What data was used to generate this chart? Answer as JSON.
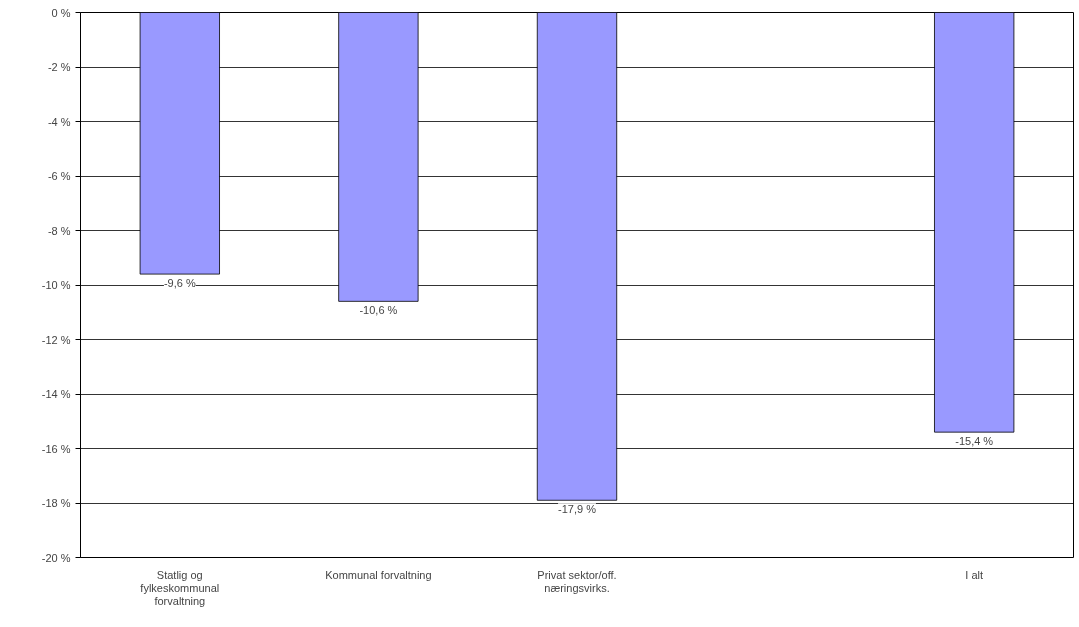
{
  "chart_data": {
    "type": "bar",
    "categories": [
      "Statlig og fylkeskommunal forvaltning",
      "Kommunal forvaltning",
      "Privat sektor/off. næringsvirks.",
      null,
      "I alt"
    ],
    "values": [
      -9.6,
      -10.6,
      -17.9,
      null,
      -15.4
    ],
    "value_labels": [
      "-9,6 %",
      "-10,6 %",
      "-17,9 %",
      null,
      "-15,4 %"
    ],
    "color": "#9999ff",
    "ylim": [
      -20,
      0
    ],
    "yticks": [
      {
        "value": 0,
        "label": "0 %"
      },
      {
        "value": -2,
        "label": "-2 %"
      },
      {
        "value": -4,
        "label": "-4 %"
      },
      {
        "value": -6,
        "label": "-6 %"
      },
      {
        "value": -8,
        "label": "-8 %"
      },
      {
        "value": -10,
        "label": "-10 %"
      },
      {
        "value": -12,
        "label": "-12 %"
      },
      {
        "value": -14,
        "label": "-14 %"
      },
      {
        "value": -16,
        "label": "-16 %"
      },
      {
        "value": -18,
        "label": "-18 %"
      },
      {
        "value": -20,
        "label": "-20 %"
      }
    ],
    "grid": "y"
  }
}
